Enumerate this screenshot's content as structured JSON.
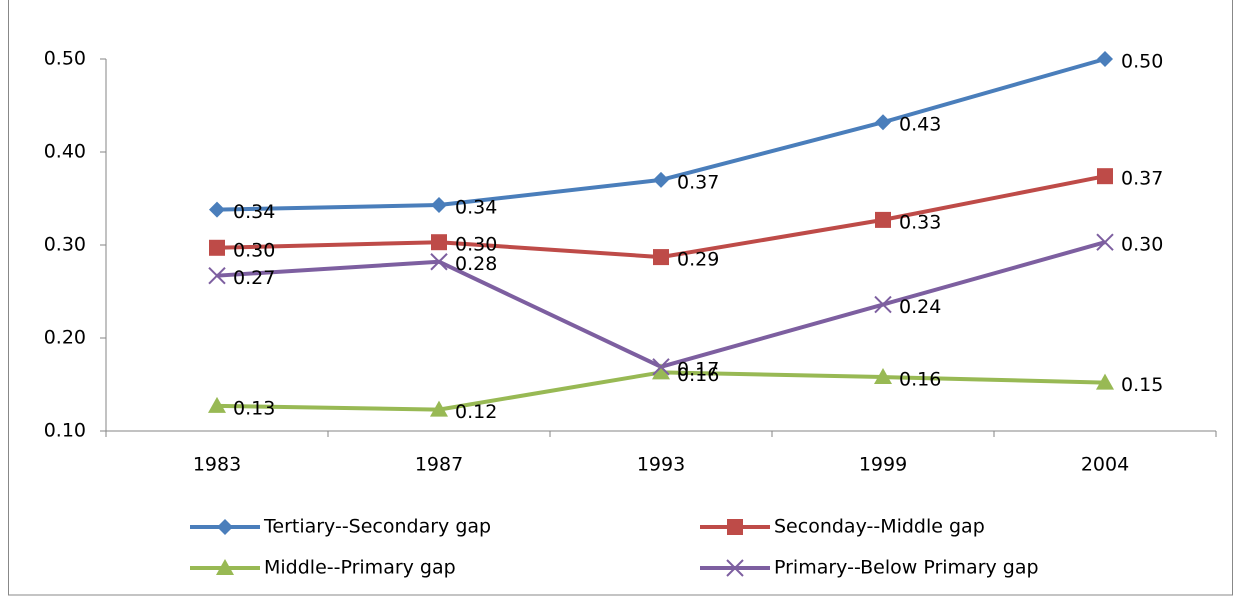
{
  "chart_data": {
    "type": "line",
    "categories": [
      "1983",
      "1987",
      "1993",
      "1999",
      "2004"
    ],
    "ylim": [
      0.1,
      0.5
    ],
    "yticks": [
      {
        "value": 0.1,
        "label": "0.10"
      },
      {
        "value": 0.2,
        "label": "0.20"
      },
      {
        "value": 0.3,
        "label": "0.30"
      },
      {
        "value": 0.4,
        "label": "0.40"
      },
      {
        "value": 0.5,
        "label": "0.50"
      }
    ],
    "grid": false,
    "series": [
      {
        "name": "Tertiary--Secondary gap",
        "color": "#4a7ebb",
        "marker": "diamond",
        "values": [
          0.338,
          0.343,
          0.37,
          0.432,
          0.5
        ],
        "value_labels": [
          "0.34",
          "0.34",
          "0.37",
          "0.43",
          "0.50"
        ]
      },
      {
        "name": "Seconday--Middle gap",
        "color": "#be4b48",
        "marker": "square",
        "values": [
          0.297,
          0.303,
          0.287,
          0.327,
          0.374
        ],
        "value_labels": [
          "0.30",
          "0.30",
          "0.29",
          "0.33",
          "0.37"
        ]
      },
      {
        "name": "Middle--Primary gap",
        "color": "#98b954",
        "marker": "triangle",
        "values": [
          0.127,
          0.123,
          0.163,
          0.158,
          0.152
        ],
        "value_labels": [
          "0.13",
          "0.12",
          "0.16",
          "0.16",
          "0.15"
        ]
      },
      {
        "name": "Primary--Below Primary gap",
        "color": "#7d5fa0",
        "marker": "x",
        "values": [
          0.267,
          0.282,
          0.169,
          0.236,
          0.303
        ],
        "value_labels": [
          "0.27",
          "0.28",
          "0.17",
          "0.24",
          "0.30"
        ]
      }
    ]
  }
}
